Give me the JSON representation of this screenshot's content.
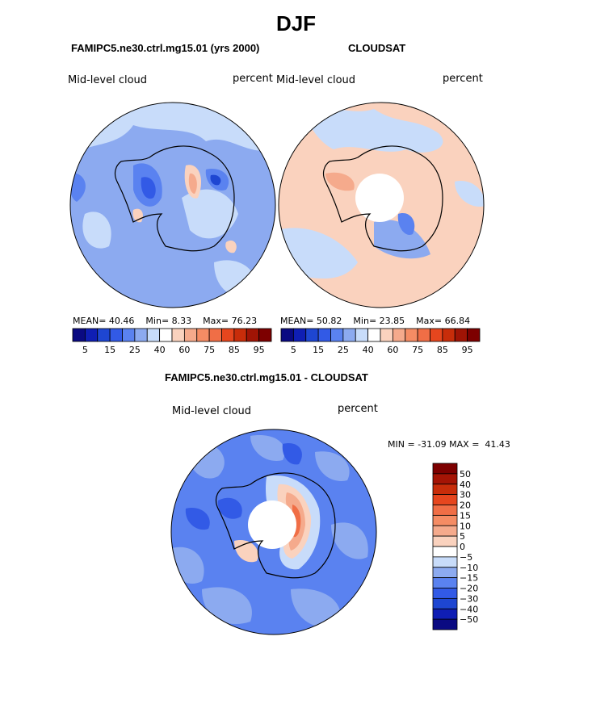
{
  "season": "DJF",
  "top_left": {
    "title": "FAMIPC5.ne30.ctrl.mg15.01 (yrs 2000)",
    "variable": "Mid-level cloud",
    "units": "percent",
    "mean_label": "MEAN=",
    "mean": "40.46",
    "min_label": "Min=",
    "min": "8.33",
    "max_label": "Max=",
    "max": "76.23"
  },
  "top_right": {
    "title": "CLOUDSAT",
    "variable": "Mid-level cloud",
    "units": "percent",
    "mean_label": "MEAN=",
    "mean": "50.82",
    "min_label": "Min=",
    "min": "23.85",
    "max_label": "Max=",
    "max": "66.84"
  },
  "diff": {
    "title": "FAMIPC5.ne30.ctrl.mg15.01 - CLOUDSAT",
    "variable": "Mid-level cloud",
    "units": "percent",
    "min_label": "MIN =",
    "min": "-31.09",
    "max_label": "MAX =",
    "max": "41.43"
  },
  "colorbar_top": {
    "colors": [
      "#0a0a82",
      "#0f1eb4",
      "#1e46d2",
      "#325ae6",
      "#5a82f0",
      "#8caaf0",
      "#c8dcfa",
      "#ffffff",
      "#fad2be",
      "#f5aa8c",
      "#f58c64",
      "#f06e46",
      "#e6461e",
      "#c82d0a",
      "#a01405",
      "#7d0000"
    ],
    "tick_labels": [
      "5",
      "15",
      "25",
      "40",
      "60",
      "75",
      "85",
      "95"
    ]
  },
  "colorbar_diff": {
    "colors": [
      "#7d0000",
      "#a51405",
      "#c82d0a",
      "#e6461e",
      "#f06e46",
      "#f58c64",
      "#f5aa8c",
      "#fad2be",
      "#ffffff",
      "#c8dcfa",
      "#8caaf0",
      "#5a82f0",
      "#325ae6",
      "#1e46d2",
      "#0f1eb4",
      "#0a0a82"
    ],
    "tick_labels": [
      "50",
      "40",
      "30",
      "20",
      "15",
      "10",
      "5",
      "0",
      "−5",
      "−10",
      "−15",
      "−20",
      "−30",
      "−40",
      "−50"
    ]
  }
}
